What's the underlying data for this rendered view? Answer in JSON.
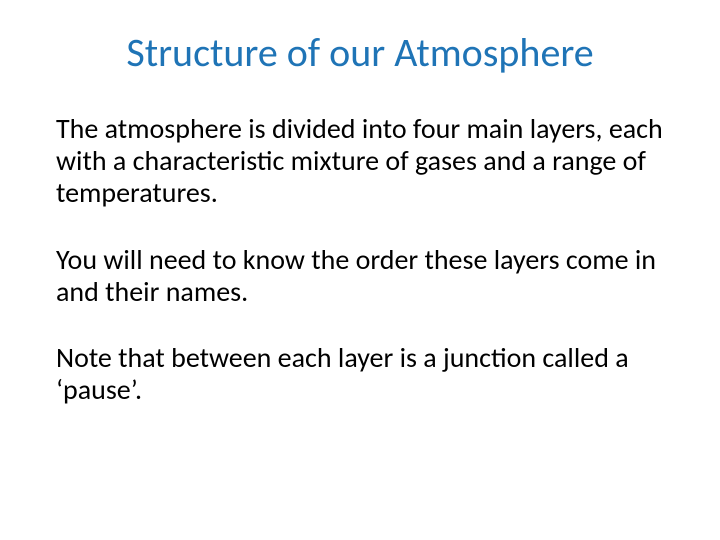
{
  "slide": {
    "title": "Structure of our Atmosphere",
    "paragraphs": [
      "The atmosphere is divided into four main layers, each with a characteristic mixture of gases and a range of temperatures.",
      "You will need to know the order these layers come in and their names.",
      "Note that between each layer is a junction called a ‘pause’."
    ],
    "styling": {
      "background_color": "#ffffff",
      "title_color": "#1f74b6",
      "title_fontsize": 40,
      "title_fontweight": 400,
      "body_color": "#000000",
      "body_fontsize": 28,
      "body_fontweight": 400,
      "font_family": "Calibri"
    }
  }
}
